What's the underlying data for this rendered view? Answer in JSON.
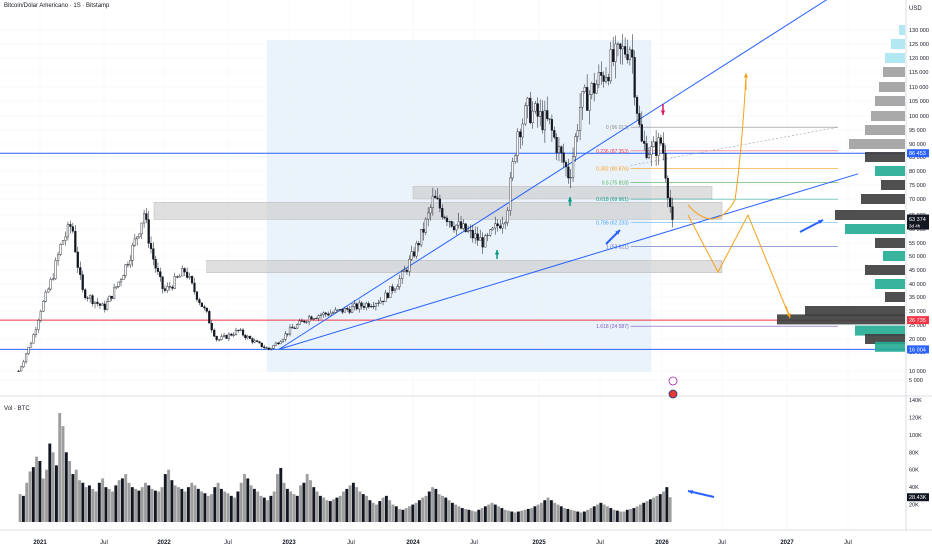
{
  "header": {
    "title": "Bitcoin/Dólar Americano · 1S · Bitstamp",
    "currency": "USD"
  },
  "volume_pane": {
    "title": "Vol · BTC"
  },
  "colors": {
    "candle_up": "#ffffff",
    "candle_down": "#131722",
    "candle_wick": "#131722",
    "trendline": "#2962ff",
    "support_red": "#f23645",
    "arrow_orange": "#f7a21b",
    "arrow_green": "#089981",
    "arrow_magenta": "#d81b60",
    "zone_gray": "#c9c9c9",
    "range_fill": "#eaf2fb",
    "profile_teal": "#22ab94",
    "profile_gray": "#9e9e9e",
    "profile_dark": "#3c3c3c",
    "profile_cyan": "#a8e6f0",
    "grid": "#f0f3fa"
  },
  "chart_data": [
    {
      "type": "line",
      "title": "Bitcoin/Dólar Americano · 1S · Bitstamp",
      "xlabel": "",
      "ylabel": "USD",
      "y_scale": "log",
      "ylim": [
        0,
        145000
      ],
      "y_ticks": [
        5000,
        10000,
        15000,
        20000,
        25000,
        30000,
        35000,
        40000,
        45000,
        50000,
        55000,
        60000,
        65000,
        70000,
        75000,
        80000,
        85000,
        90000,
        95000,
        100000,
        105000,
        110000,
        115000,
        120000,
        125000,
        130000
      ],
      "y_tick_labels": [
        "5 000",
        "10 000",
        "15 000",
        "20 000",
        "25 000",
        "30 000",
        "35 000",
        "40 000",
        "45 000",
        "50 000",
        "55 000",
        "60 000",
        "65 000",
        "70 000",
        "75 000",
        "80 000",
        "85 000",
        "90 000",
        "95 000",
        "100 000",
        "105 000",
        "110 000",
        "115 000",
        "120 000",
        "125 000",
        "130 000"
      ],
      "x_ticks": [
        "2021",
        "Jul",
        "2022",
        "Jul",
        "2023",
        "Jul",
        "2024",
        "Jul",
        "2025",
        "Jul",
        "2026",
        "Jul",
        "2027",
        "Jul"
      ],
      "x_tick_dates": [
        "2021-01",
        "2021-07",
        "2022-01",
        "2022-07",
        "2023-01",
        "2023-07",
        "2024-01",
        "2024-07",
        "2025-01",
        "2025-07",
        "2026-01",
        "2026-07",
        "2027-01",
        "2027-07"
      ],
      "series": [
        {
          "type": "line",
          "x": [
            "2020-11",
            "2021-01",
            "2021-03",
            "2021-04",
            "2021-05",
            "2021-07",
            "2021-09",
            "2021-11",
            "2021-12",
            "2022-01",
            "2022-03",
            "2022-05",
            "2022-06",
            "2022-08",
            "2022-11",
            "2023-01",
            "2023-03",
            "2023-06",
            "2023-10",
            "2023-12",
            "2024-03",
            "2024-05",
            "2024-08",
            "2024-10",
            "2024-11",
            "2024-12",
            "2025-02",
            "2025-04",
            "2025-05",
            "2025-08",
            "2025-10",
            "2025-11",
            "2025-12",
            "2026-01",
            "2026-02"
          ],
          "y": [
            10000,
            30000,
            55000,
            62000,
            37000,
            31000,
            45000,
            66000,
            48000,
            37000,
            45000,
            29000,
            19500,
            23000,
            16000,
            23000,
            28000,
            30000,
            34000,
            43000,
            70000,
            62000,
            55000,
            66000,
            95000,
            102000,
            97000,
            78000,
            103000,
            118000,
            125000,
            90000,
            87000,
            91000,
            63374
          ]
        }
      ],
      "last_price": {
        "label": "63 374",
        "countdown": "3d 4h",
        "value": 63374
      },
      "price_labels": [
        {
          "label": "86 453",
          "value": 86453
        },
        {
          "label": "26 735",
          "value": 26735
        },
        {
          "label": "16 004",
          "value": 16004
        }
      ],
      "fibonacci": [
        {
          "level": "0",
          "label": "0 (96 013)",
          "value": 96013
        },
        {
          "level": "0.236",
          "label": "0.236 (87 353)",
          "value": 87353
        },
        {
          "level": "0.382",
          "label": "0.382 (80 876)",
          "value": 80876
        },
        {
          "level": "0.5",
          "label": "0.5 (75 818)",
          "value": 75818
        },
        {
          "level": "0.618",
          "label": "0.618 (69 961)",
          "value": 69961
        },
        {
          "level": "0.786",
          "label": "0.786 (62 233)",
          "value": 62233
        },
        {
          "level": "1",
          "label": "1 (53 621)",
          "value": 53621
        },
        {
          "level": "1.618",
          "label": "1.618 (24 587)",
          "value": 24587
        }
      ],
      "horizontal_levels": [
        86453,
        26735,
        16004
      ],
      "zones": [
        {
          "from": "2021-12",
          "to": "2026-07",
          "low": 63400,
          "high": 69000
        },
        {
          "from": "2022-05",
          "to": "2026-07",
          "low": 44000,
          "high": 48500
        },
        {
          "from": "2024-01",
          "to": "2026-06",
          "low": 70000,
          "high": 74500
        }
      ],
      "trendlines": [
        {
          "from": [
            "2022-12",
            16004
          ],
          "to": [
            "2027-08",
            148000
          ]
        },
        {
          "from": [
            "2022-12",
            16004
          ],
          "to": [
            "2027-08",
            79000
          ]
        }
      ]
    },
    {
      "type": "bar",
      "title": "Vol · BTC",
      "x_range": [
        "2020-11",
        "2026-02"
      ],
      "ylim": [
        0,
        140000
      ],
      "y_ticks": [
        20000,
        40000,
        60000,
        80000,
        100000,
        120000,
        140000
      ],
      "y_tick_labels": [
        "20K",
        "40K",
        "60K",
        "80K",
        "100K",
        "120K",
        "140K"
      ],
      "values": [
        32000,
        30000,
        45000,
        58000,
        63000,
        75000,
        70000,
        50000,
        60000,
        90000,
        80000,
        65000,
        125000,
        110000,
        80000,
        70000,
        55000,
        60000,
        48000,
        45000,
        40000,
        42000,
        38000,
        35000,
        45000,
        50000,
        40000,
        38000,
        35000,
        42000,
        48000,
        50000,
        55000,
        45000,
        40000,
        38000,
        36000,
        40000,
        45000,
        42000,
        38000,
        36000,
        35000,
        40000,
        55000,
        60000,
        48000,
        42000,
        40000,
        38000,
        35000,
        40000,
        45000,
        42000,
        38000,
        35000,
        33000,
        30000,
        32000,
        40000,
        45000,
        38000,
        35000,
        33000,
        30000,
        28000,
        35000,
        45000,
        55000,
        50000,
        42000,
        38000,
        35000,
        30000,
        28000,
        25000,
        30000,
        35000,
        55000,
        62000,
        45000,
        38000,
        35000,
        32000,
        30000,
        42000,
        45000,
        55000,
        48000,
        40000,
        35000,
        30000,
        28000,
        25000,
        24000,
        26000,
        28000,
        30000,
        35000,
        38000,
        42000,
        45000,
        40000,
        35000,
        32000,
        30000,
        25000,
        22000,
        20000,
        24000,
        28000,
        30000,
        25000,
        20000,
        18000,
        15000,
        14000,
        16000,
        18000,
        20000,
        22000,
        25000,
        28000,
        30000,
        35000,
        40000,
        38000,
        32000,
        30000,
        28000,
        25000,
        22000,
        20000,
        18000,
        16000,
        15000,
        14000,
        13000,
        12000,
        14000,
        16000,
        18000,
        20000,
        22000,
        20000,
        18000,
        16000,
        14000,
        13000,
        12000,
        11000,
        12000,
        13000,
        14000,
        15000,
        16000,
        18000,
        20000,
        22000,
        25000,
        28000,
        25000,
        22000,
        20000,
        18000,
        16000,
        15000,
        14000,
        13000,
        12000,
        11000,
        12000,
        14000,
        16000,
        18000,
        20000,
        22000,
        20000,
        18000,
        16000,
        14000,
        13000,
        12000,
        12000,
        14000,
        15000,
        16000,
        18000,
        20000,
        22000,
        24000,
        26000,
        28000,
        30000,
        32000,
        35000,
        40000,
        28435
      ],
      "last_volume": {
        "label": "28.43K",
        "value": 28435
      }
    }
  ]
}
